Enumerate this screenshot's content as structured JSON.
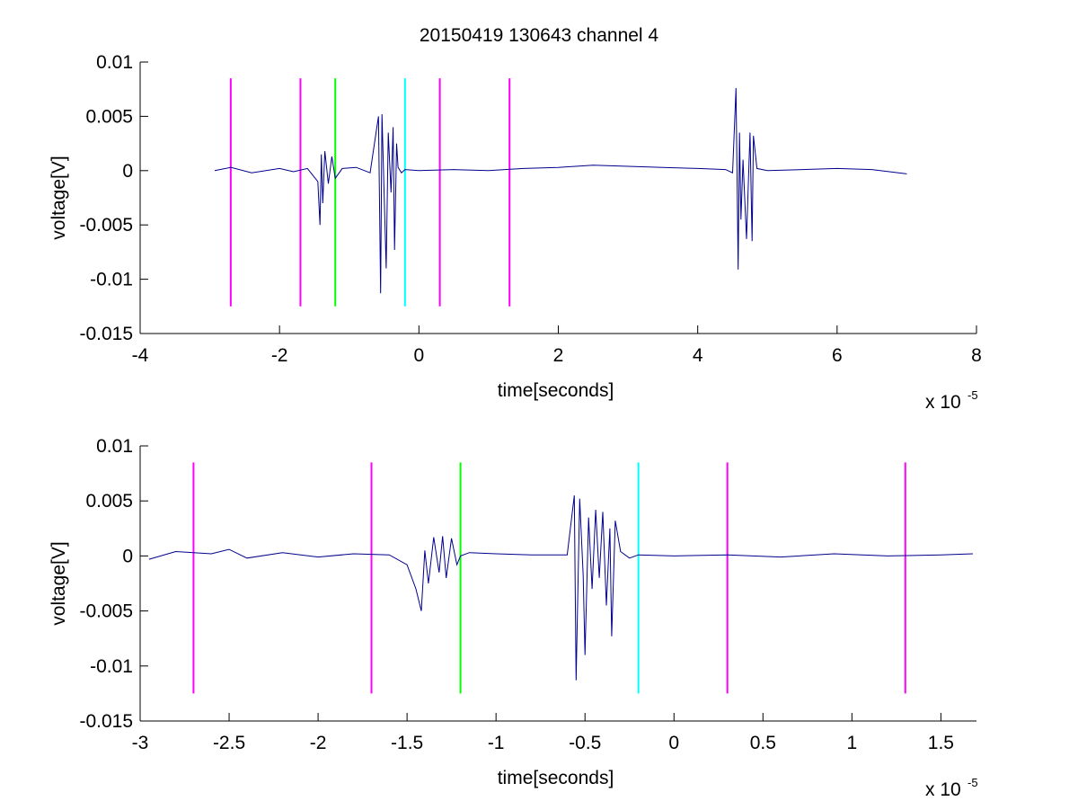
{
  "title": "20150419 130643 channel 4",
  "chart_data": [
    {
      "type": "line",
      "title": "20150419 130643 channel 4",
      "xlabel": "time[seconds]",
      "ylabel": "voltage[V]",
      "x_multiplier_label": "x 10",
      "x_multiplier_exponent": "-5",
      "xlim": [
        -4,
        8
      ],
      "ylim": [
        -0.015,
        0.01
      ],
      "xticks": [
        -4,
        -2,
        0,
        2,
        4,
        6,
        8
      ],
      "xtick_labels": [
        "-4",
        "-2",
        "0",
        "2",
        "4",
        "6",
        "8"
      ],
      "yticks": [
        0.01,
        0.005,
        0,
        -0.005,
        -0.01,
        -0.015
      ],
      "ytick_labels": [
        "0.01",
        "0.005",
        "0",
        "-0.005",
        "-0.01",
        "-0.015"
      ],
      "grid": false,
      "series": [
        {
          "color": "#00008b",
          "x": [
            -2.93,
            -2.7,
            -2.4,
            -2.0,
            -1.8,
            -1.6,
            -1.45,
            -1.42,
            -1.4,
            -1.38,
            -1.35,
            -1.3,
            -1.25,
            -1.2,
            -1.1,
            -0.9,
            -0.7,
            -0.58,
            -0.55,
            -0.53,
            -0.5,
            -0.47,
            -0.44,
            -0.4,
            -0.37,
            -0.35,
            -0.32,
            -0.3,
            -0.25,
            -0.2,
            0.0,
            0.5,
            1.0,
            1.5,
            2.0,
            2.5,
            3.0,
            3.5,
            4.0,
            4.4,
            4.5,
            4.55,
            4.58,
            4.6,
            4.62,
            4.65,
            4.7,
            4.75,
            4.78,
            4.8,
            4.85,
            5.0,
            5.5,
            6.0,
            6.5,
            7.0
          ],
          "y": [
            0.0,
            0.0003,
            -0.0002,
            0.0002,
            -0.0001,
            0.0002,
            -0.001,
            -0.005,
            0.0015,
            -0.003,
            0.0018,
            -0.0012,
            0.0013,
            -0.0007,
            0.0002,
            0.0003,
            -0.0002,
            0.005,
            -0.0113,
            0.0052,
            -0.0018,
            -0.009,
            0.0035,
            -0.002,
            0.004,
            -0.0073,
            0.0025,
            0.0003,
            -0.0002,
            0.0001,
            0.0,
            0.0001,
            0.0,
            0.0002,
            0.0003,
            0.0005,
            0.0004,
            0.0003,
            0.0002,
            0.0001,
            -0.0002,
            0.0076,
            -0.0091,
            0.0035,
            -0.0045,
            0.001,
            -0.0063,
            0.0035,
            -0.0065,
            0.0032,
            0.0002,
            0.0,
            0.0001,
            0.0002,
            0.0001,
            -0.0003
          ]
        }
      ],
      "markers": [
        {
          "x": -2.7,
          "color": "#ff00ff"
        },
        {
          "x": -1.7,
          "color": "#ff00ff"
        },
        {
          "x": -1.2,
          "color": "#00ff00"
        },
        {
          "x": -0.2,
          "color": "#00ffff"
        },
        {
          "x": 0.3,
          "color": "#ff00ff"
        },
        {
          "x": 1.3,
          "color": "#ff00ff"
        }
      ],
      "marker_y_range": [
        -0.0125,
        0.0085
      ]
    },
    {
      "type": "line",
      "xlabel": "time[seconds]",
      "ylabel": "voltage[V]",
      "x_multiplier_label": "x 10",
      "x_multiplier_exponent": "-5",
      "xlim": [
        -3.0,
        1.7
      ],
      "ylim": [
        -0.015,
        0.01
      ],
      "xticks": [
        -3,
        -2.5,
        -2,
        -1.5,
        -1,
        -0.5,
        0,
        0.5,
        1,
        1.5
      ],
      "xtick_labels": [
        "-3",
        "-2.5",
        "-2",
        "-1.5",
        "-1",
        "-0.5",
        "0",
        "0.5",
        "1",
        "1.5"
      ],
      "yticks": [
        0.01,
        0.005,
        0,
        -0.005,
        -0.01,
        -0.015
      ],
      "ytick_labels": [
        "0.01",
        "0.005",
        "0",
        "-0.005",
        "-0.01",
        "-0.015"
      ],
      "grid": false,
      "series": [
        {
          "color": "#00008b",
          "x": [
            -2.95,
            -2.8,
            -2.6,
            -2.5,
            -2.4,
            -2.2,
            -2.0,
            -1.8,
            -1.6,
            -1.5,
            -1.45,
            -1.42,
            -1.4,
            -1.38,
            -1.35,
            -1.32,
            -1.3,
            -1.28,
            -1.25,
            -1.22,
            -1.2,
            -1.15,
            -1.0,
            -0.8,
            -0.6,
            -0.56,
            -0.55,
            -0.53,
            -0.51,
            -0.5,
            -0.48,
            -0.46,
            -0.44,
            -0.42,
            -0.4,
            -0.38,
            -0.36,
            -0.35,
            -0.33,
            -0.3,
            -0.25,
            -0.2,
            0.0,
            0.3,
            0.6,
            0.9,
            1.2,
            1.5,
            1.68
          ],
          "y": [
            -0.0003,
            0.0004,
            0.0002,
            0.0006,
            -0.0002,
            0.0003,
            -0.0001,
            0.0002,
            0.0001,
            -0.0008,
            -0.003,
            -0.005,
            0.0005,
            -0.0025,
            0.0017,
            -0.0015,
            0.0018,
            -0.002,
            0.0016,
            -0.0008,
            0.0,
            0.0003,
            0.0002,
            0.0001,
            0.0001,
            0.0055,
            -0.0113,
            0.0052,
            -0.0018,
            -0.009,
            0.0035,
            -0.003,
            0.0042,
            -0.002,
            0.004,
            -0.0045,
            0.0025,
            -0.0073,
            0.0032,
            0.0004,
            -0.0002,
            0.0001,
            0.0,
            0.0001,
            -0.0001,
            0.0002,
            0.0,
            0.0001,
            0.0002
          ]
        }
      ],
      "markers": [
        {
          "x": -2.7,
          "color": "#ff00ff"
        },
        {
          "x": -1.7,
          "color": "#ff00ff"
        },
        {
          "x": -1.2,
          "color": "#00ff00"
        },
        {
          "x": -0.2,
          "color": "#00ffff"
        },
        {
          "x": 0.3,
          "color": "#ff00ff"
        },
        {
          "x": 1.3,
          "color": "#ff00ff"
        }
      ],
      "marker_y_range": [
        -0.0125,
        0.0085
      ]
    }
  ]
}
